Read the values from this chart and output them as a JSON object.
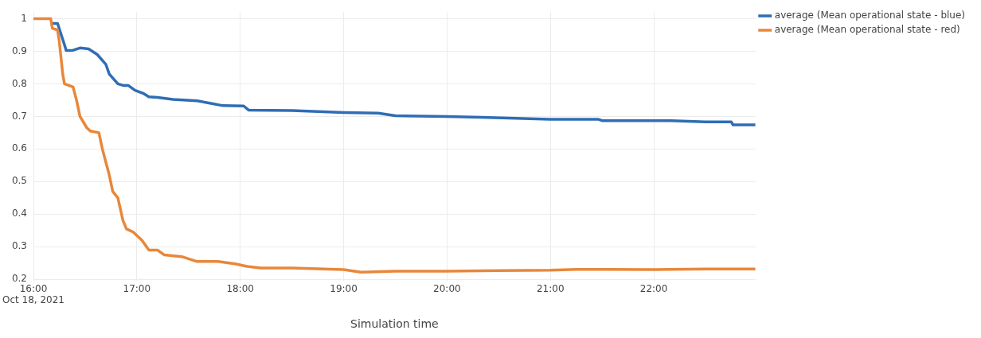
{
  "chart_data": {
    "type": "line",
    "xlabel": "Simulation time",
    "xlim": [
      "2021-10-18T16:00",
      "2021-10-18T22:59"
    ],
    "xticks": [
      {
        "value": "2021-10-18T16:00",
        "label": "16:00\nOct 18, 2021"
      },
      {
        "value": "2021-10-18T17:00",
        "label": "17:00"
      },
      {
        "value": "2021-10-18T18:00",
        "label": "18:00"
      },
      {
        "value": "2021-10-18T19:00",
        "label": "19:00"
      },
      {
        "value": "2021-10-18T20:00",
        "label": "20:00"
      },
      {
        "value": "2021-10-18T21:00",
        "label": "21:00"
      },
      {
        "value": "2021-10-18T22:00",
        "label": "22:00"
      }
    ],
    "ylim": [
      0.195,
      1.02
    ],
    "yticks": [
      0.2,
      0.3,
      0.4,
      0.5,
      0.6,
      0.7,
      0.8,
      0.9,
      {
        "value": 1,
        "label": "1"
      }
    ],
    "grid": true,
    "legend": "top right",
    "marker": "none",
    "line_style": "solid",
    "series": [
      {
        "name": "average (Mean operational state - blue)",
        "color": "#2f6db5",
        "x": [
          "2021-10-18T16:10",
          "2021-10-18T16:14",
          "2021-10-18T16:18",
          "2021-10-18T16:19",
          "2021-10-18T16:23",
          "2021-10-18T16:27",
          "2021-10-18T16:32",
          "2021-10-18T16:37",
          "2021-10-18T16:42",
          "2021-10-18T16:44",
          "2021-10-18T16:49",
          "2021-10-18T16:52",
          "2021-10-18T16:55",
          "2021-10-18T16:59",
          "2021-10-18T17:04",
          "2021-10-18T17:07",
          "2021-10-18T17:12",
          "2021-10-18T17:21",
          "2021-10-18T17:35",
          "2021-10-18T17:43",
          "2021-10-18T17:50",
          "2021-10-18T18:02",
          "2021-10-18T18:05",
          "2021-10-18T18:30",
          "2021-10-18T19:00",
          "2021-10-18T19:20",
          "2021-10-18T19:30",
          "2021-10-18T20:00",
          "2021-10-18T20:20",
          "2021-10-18T21:00",
          "2021-10-18T21:28",
          "2021-10-18T21:30",
          "2021-10-18T22:10",
          "2021-10-18T22:30",
          "2021-10-18T22:45",
          "2021-10-18T22:46",
          "2021-10-18T22:59"
        ],
        "values": [
          0.985,
          0.985,
          0.92,
          0.902,
          0.903,
          0.91,
          0.907,
          0.89,
          0.86,
          0.83,
          0.8,
          0.795,
          0.795,
          0.78,
          0.77,
          0.76,
          0.758,
          0.752,
          0.748,
          0.74,
          0.733,
          0.732,
          0.719,
          0.718,
          0.712,
          0.71,
          0.702,
          0.7,
          0.697,
          0.691,
          0.691,
          0.687,
          0.687,
          0.683,
          0.683,
          0.674,
          0.674
        ]
      },
      {
        "name": "average (Mean operational state - red)",
        "color": "#e8873a",
        "x": [
          "2021-10-18T16:00",
          "2021-10-18T16:10",
          "2021-10-18T16:11",
          "2021-10-18T16:14",
          "2021-10-18T16:15",
          "2021-10-18T16:17",
          "2021-10-18T16:18",
          "2021-10-18T16:23",
          "2021-10-18T16:25",
          "2021-10-18T16:27",
          "2021-10-18T16:31",
          "2021-10-18T16:33",
          "2021-10-18T16:38",
          "2021-10-18T16:40",
          "2021-10-18T16:42",
          "2021-10-18T16:44",
          "2021-10-18T16:46",
          "2021-10-18T16:49",
          "2021-10-18T16:52",
          "2021-10-18T16:54",
          "2021-10-18T16:58",
          "2021-10-18T17:03",
          "2021-10-18T17:07",
          "2021-10-18T17:12",
          "2021-10-18T17:16",
          "2021-10-18T17:26",
          "2021-10-18T17:35",
          "2021-10-18T17:47",
          "2021-10-18T17:57",
          "2021-10-18T18:04",
          "2021-10-18T18:12",
          "2021-10-18T18:30",
          "2021-10-18T19:00",
          "2021-10-18T19:10",
          "2021-10-18T19:30",
          "2021-10-18T20:00",
          "2021-10-18T20:30",
          "2021-10-18T21:00",
          "2021-10-18T21:15",
          "2021-10-18T22:00",
          "2021-10-18T22:30",
          "2021-10-18T22:59"
        ],
        "values": [
          1,
          1,
          0.97,
          0.965,
          0.93,
          0.83,
          0.8,
          0.79,
          0.75,
          0.7,
          0.665,
          0.655,
          0.65,
          0.6,
          0.56,
          0.52,
          0.47,
          0.45,
          0.38,
          0.355,
          0.345,
          0.32,
          0.29,
          0.29,
          0.275,
          0.27,
          0.255,
          0.255,
          0.248,
          0.24,
          0.235,
          0.235,
          0.23,
          0.222,
          0.225,
          0.225,
          0.227,
          0.228,
          0.231,
          0.23,
          0.232,
          0.232
        ]
      }
    ]
  }
}
